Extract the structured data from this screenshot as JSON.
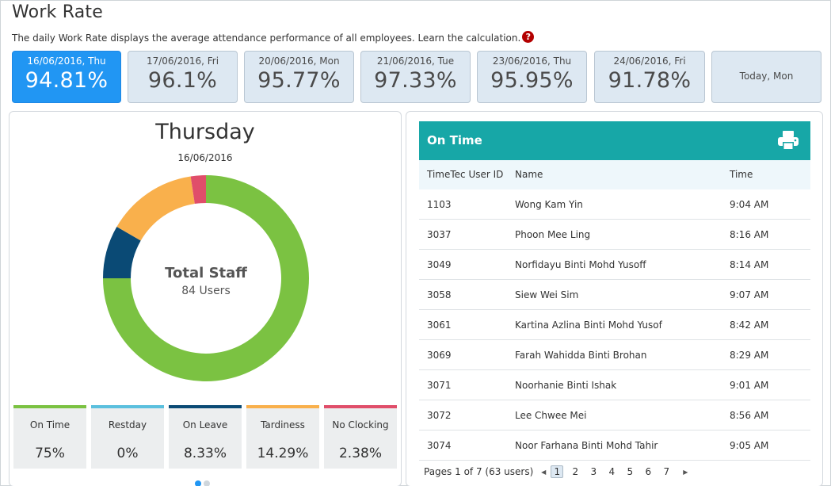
{
  "page": {
    "title": "Work Rate",
    "description": "The daily Work Rate displays the average attendance performance of all employees. Learn the calculation.",
    "help_glyph": "?"
  },
  "day_cards": [
    {
      "date": "16/06/2016, Thu",
      "rate": "94.81%",
      "active": true
    },
    {
      "date": "17/06/2016, Fri",
      "rate": "96.1%"
    },
    {
      "date": "20/06/2016, Mon",
      "rate": "95.77%"
    },
    {
      "date": "21/06/2016, Tue",
      "rate": "97.33%"
    },
    {
      "date": "23/06/2016, Thu",
      "rate": "95.95%"
    },
    {
      "date": "24/06/2016, Fri",
      "rate": "91.78%"
    },
    {
      "today_label": "Today, Mon"
    }
  ],
  "summary": {
    "day_name": "Thursday",
    "date": "16/06/2016",
    "center_title": "Total Staff",
    "center_sub": "84 Users"
  },
  "chart_data": {
    "type": "pie",
    "categories": [
      "On Time",
      "Restday",
      "On Leave",
      "Tardiness",
      "No Clocking"
    ],
    "values": [
      75,
      0,
      8.33,
      14.29,
      2.38
    ],
    "colors": [
      "#7bc242",
      "#5bc0de",
      "#0a4a75",
      "#f9b04c",
      "#e04e6a"
    ],
    "donut": true
  },
  "legend": [
    {
      "label": "On Time",
      "value": "75%",
      "color": "#7bc242"
    },
    {
      "label": "Restday",
      "value": "0%",
      "color": "#5bc0de"
    },
    {
      "label": "On Leave",
      "value": "8.33%",
      "color": "#0a4a75"
    },
    {
      "label": "Tardiness",
      "value": "14.29%",
      "color": "#f9b04c"
    },
    {
      "label": "No Clocking",
      "value": "2.38%",
      "color": "#e04e6a"
    }
  ],
  "pager_dot_colors": [
    "#2196f3",
    "#cfd6dc"
  ],
  "list": {
    "title": "On Time",
    "print_icon": "printer-icon",
    "header_color": "#17a7a7",
    "columns": [
      "TimeTec User ID",
      "Name",
      "Time"
    ],
    "rows": [
      {
        "id": "1103",
        "name": "Wong Kam Yin",
        "time": "9:04 AM"
      },
      {
        "id": "3037",
        "name": "Phoon Mee Ling",
        "time": "8:16 AM"
      },
      {
        "id": "3049",
        "name": "Norfidayu Binti Mohd Yusoff",
        "time": "8:14 AM"
      },
      {
        "id": "3058",
        "name": "Siew Wei Sim",
        "time": "9:07 AM"
      },
      {
        "id": "3061",
        "name": "Kartina Azlina Binti Mohd Yusof",
        "time": "8:42 AM"
      },
      {
        "id": "3069",
        "name": "Farah Wahidda Binti Brohan",
        "time": "8:29 AM"
      },
      {
        "id": "3071",
        "name": "Noorhanie Binti Ishak",
        "time": "9:01 AM"
      },
      {
        "id": "3072",
        "name": "Lee Chwee Mei",
        "time": "8:56 AM"
      },
      {
        "id": "3074",
        "name": "Noor Farhana Binti Mohd Tahir",
        "time": "9:05 AM"
      }
    ],
    "pagination": {
      "summary": "Pages 1 of 7 (63 users)",
      "prev_glyph": "◀",
      "next_glyph": "▶",
      "pages": [
        "1",
        "2",
        "3",
        "4",
        "5",
        "6",
        "7"
      ],
      "current": "1"
    }
  }
}
